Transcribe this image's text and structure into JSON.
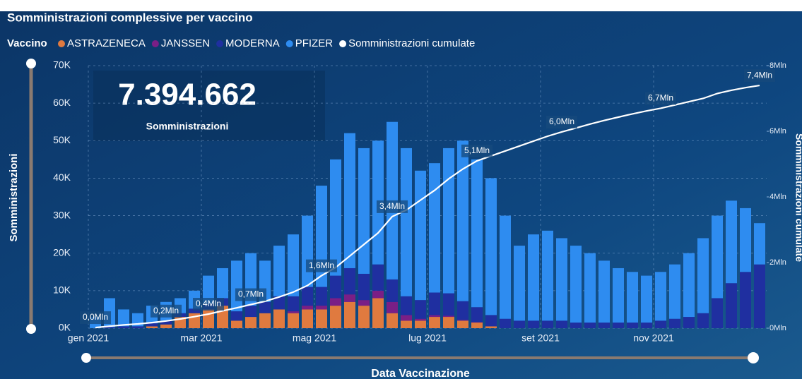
{
  "chart_data": {
    "type": "bar",
    "title": "Somministrazioni complessive per vaccino",
    "legend_title": "Vaccino",
    "kpi": {
      "value": "7.394.662",
      "label": "Somministrazioni"
    },
    "x_label": "Data Vaccinazione",
    "y_label": "Somministrazioni",
    "y2_label": "Somministrazioni cumulate",
    "stacked": true,
    "grid": true,
    "categories": [
      "gen 2021",
      null,
      null,
      null,
      null,
      null,
      null,
      null,
      "mar 2021",
      null,
      null,
      null,
      null,
      null,
      null,
      null,
      "mag 2021",
      null,
      null,
      null,
      null,
      null,
      null,
      null,
      "lug 2021",
      null,
      null,
      null,
      null,
      null,
      null,
      null,
      "set 2021",
      null,
      null,
      null,
      null,
      null,
      null,
      null,
      "nov 2021",
      null,
      null,
      null,
      null,
      null,
      null,
      null
    ],
    "ylim": [
      0,
      70000
    ],
    "yticks": [
      {
        "value": 0,
        "label": "0K"
      },
      {
        "value": 10000,
        "label": "10K"
      },
      {
        "value": 20000,
        "label": "20K"
      },
      {
        "value": 30000,
        "label": "30K"
      },
      {
        "value": 40000,
        "label": "40K"
      },
      {
        "value": 50000,
        "label": "50K"
      },
      {
        "value": 60000,
        "label": "60K"
      },
      {
        "value": 70000,
        "label": "70K"
      }
    ],
    "y2lim": [
      0,
      8000000
    ],
    "y2ticks": [
      {
        "value": 0,
        "label": "0Mln"
      },
      {
        "value": 2000000,
        "label": "2Mln"
      },
      {
        "value": 4000000,
        "label": "4Mln"
      },
      {
        "value": 6000000,
        "label": "6Mln"
      },
      {
        "value": 8000000,
        "label": "8Mln"
      }
    ],
    "series": [
      {
        "name": "ASTRAZENECA",
        "color": "#e07a3f",
        "values": [
          0,
          0,
          0,
          0,
          500,
          1000,
          3000,
          4000,
          5000,
          6000,
          2000,
          3000,
          4000,
          5000,
          4000,
          5000,
          5000,
          6000,
          7000,
          6000,
          8000,
          4000,
          2000,
          2000,
          3000,
          3000,
          2000,
          1500,
          500,
          0,
          0,
          0,
          0,
          0,
          0,
          0,
          0,
          0,
          0,
          0,
          0,
          0,
          0,
          0,
          0,
          0,
          0,
          0
        ]
      },
      {
        "name": "JANSSEN",
        "color": "#7a1f86",
        "values": [
          0,
          0,
          0,
          0,
          0,
          0,
          0,
          0,
          0,
          0,
          0,
          0,
          0,
          0,
          500,
          1000,
          1000,
          2000,
          2000,
          1500,
          2000,
          3000,
          1500,
          500,
          500,
          300,
          200,
          100,
          0,
          0,
          0,
          0,
          0,
          0,
          0,
          0,
          0,
          0,
          0,
          0,
          0,
          0,
          0,
          0,
          0,
          0,
          0,
          0
        ]
      },
      {
        "name": "MODERNA",
        "color": "#1f2fa0",
        "values": [
          0,
          300,
          500,
          500,
          800,
          1000,
          1000,
          1200,
          1500,
          2000,
          2500,
          3000,
          3000,
          3500,
          4000,
          5000,
          5000,
          6000,
          7000,
          7000,
          7000,
          6000,
          5000,
          5000,
          6000,
          6000,
          5000,
          4000,
          3000,
          2500,
          2000,
          2000,
          2000,
          2000,
          1500,
          1500,
          1500,
          1500,
          1500,
          1500,
          2000,
          2500,
          3000,
          4000,
          8000,
          12000,
          15000,
          17000
        ]
      },
      {
        "name": "PFIZER",
        "color": "#2e8cf0",
        "values": [
          3000,
          7700,
          4500,
          3500,
          4700,
          5000,
          4000,
          4800,
          7500,
          8000,
          13500,
          14000,
          11000,
          13500,
          16500,
          19000,
          27000,
          31000,
          36000,
          33500,
          33000,
          42000,
          39500,
          34500,
          34500,
          38700,
          42800,
          39400,
          36500,
          27500,
          20000,
          23000,
          24000,
          22000,
          20500,
          18500,
          16500,
          14500,
          13500,
          12500,
          13000,
          14500,
          17000,
          20000,
          22000,
          22000,
          17000,
          11000
        ]
      },
      {
        "name": "Somministrazioni cumulate",
        "color": "#ffffff",
        "type": "line",
        "axis": "y2",
        "values": [
          20000,
          60000,
          100000,
          130000,
          170000,
          220000,
          280000,
          350000,
          430000,
          530000,
          620000,
          720000,
          820000,
          950000,
          1100000,
          1300000,
          1600000,
          1850000,
          2200000,
          2550000,
          2900000,
          3400000,
          3600000,
          3900000,
          4200000,
          4550000,
          4850000,
          5100000,
          5250000,
          5400000,
          5550000,
          5700000,
          5850000,
          5980000,
          6100000,
          6220000,
          6330000,
          6430000,
          6530000,
          6620000,
          6700000,
          6800000,
          6900000,
          7000000,
          7150000,
          7250000,
          7330000,
          7394662
        ],
        "value_labels": [
          "0,0Mln",
          null,
          null,
          null,
          null,
          "0,2Mln",
          null,
          null,
          "0,4Mln",
          null,
          null,
          "0,7Mln",
          null,
          null,
          null,
          null,
          "1,6Mln",
          null,
          null,
          null,
          null,
          "3,4Mln",
          null,
          null,
          null,
          null,
          null,
          "5,1Mln",
          null,
          null,
          null,
          null,
          null,
          "6,0Mln",
          null,
          null,
          null,
          null,
          null,
          null,
          "6,7Mln",
          null,
          null,
          null,
          null,
          null,
          null,
          "7,4Mln"
        ]
      }
    ]
  }
}
